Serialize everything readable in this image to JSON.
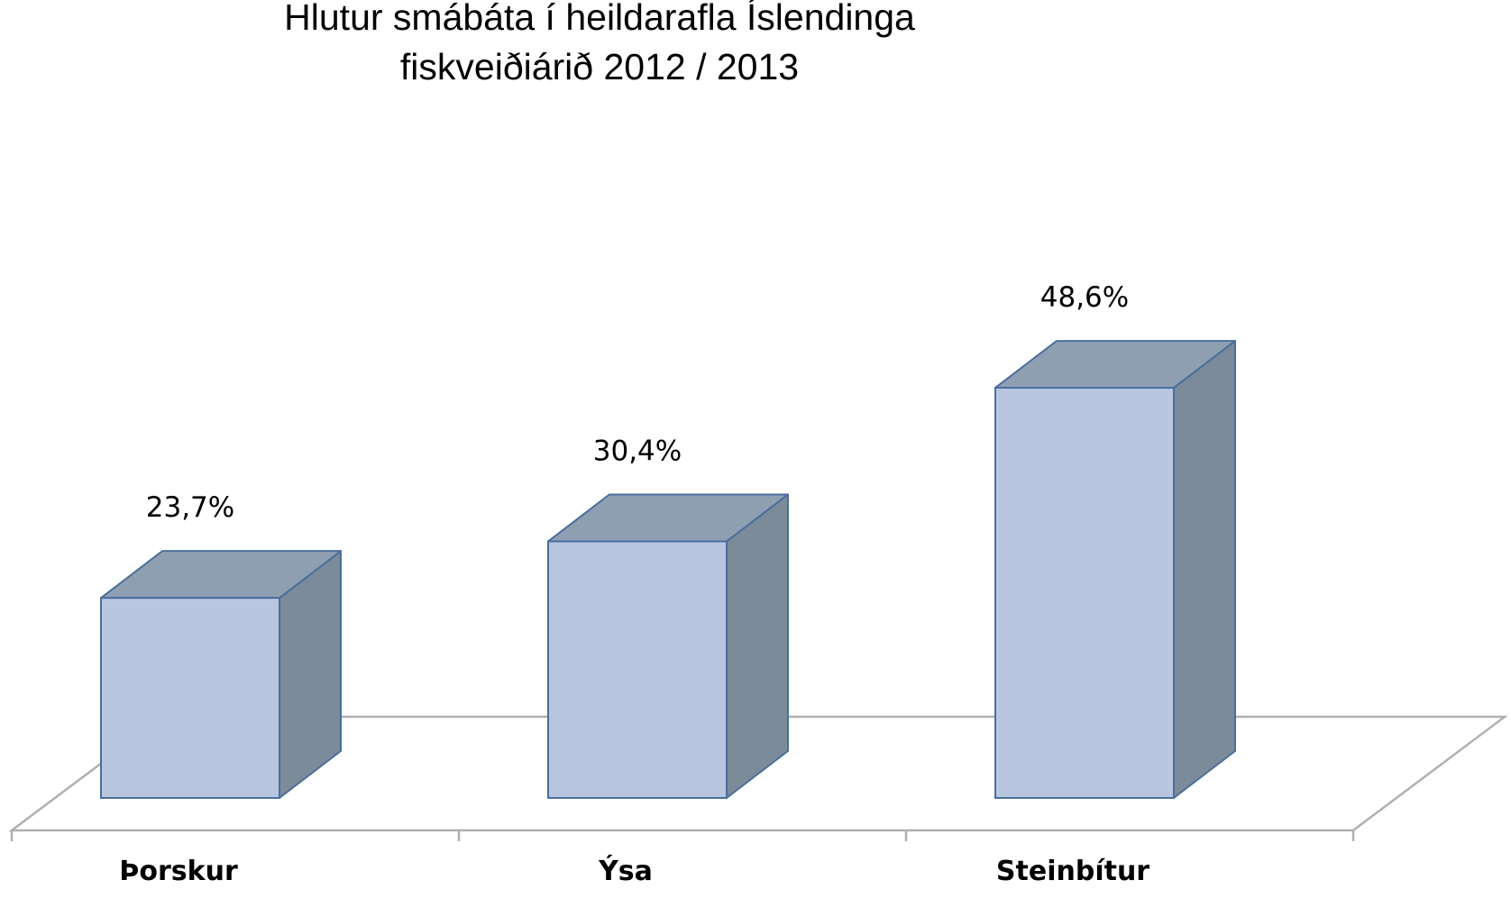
{
  "chart_data": {
    "type": "bar",
    "title_lines": [
      "Hlutur smábáta í heildarafla Íslendinga",
      "fiskveiðiárið 2012 / 2013"
    ],
    "categories": [
      "Þorskur",
      "Ýsa",
      "Steinbítur"
    ],
    "values": [
      23.7,
      30.4,
      48.6
    ],
    "data_labels": [
      "23,7%",
      "30,4%",
      "48,6%"
    ],
    "xlabel": "",
    "ylabel": "",
    "ylim": [
      0,
      55
    ],
    "grid": false,
    "legend": "none",
    "style": "3d-column",
    "colors": {
      "front": "#b8c6e0",
      "top": "#8f9fb2",
      "side": "#7b8b99",
      "edge": "#4a6f9c",
      "floor": "#b0b0b0"
    }
  }
}
